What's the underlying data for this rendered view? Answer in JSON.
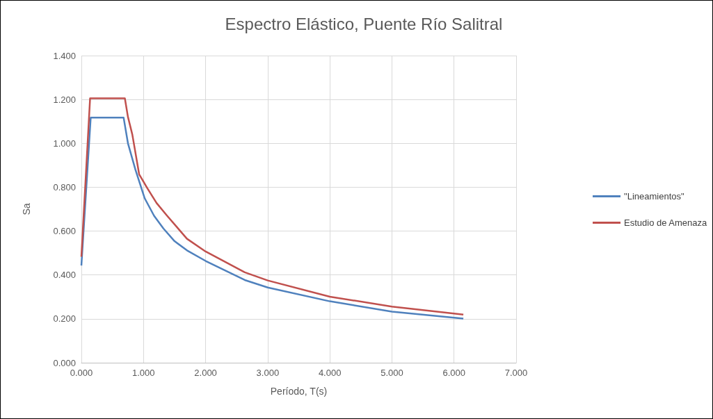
{
  "chart_data": {
    "type": "line",
    "title": "Espectro Elástico, Puente Río Salitral",
    "xlabel": "Período, T(s)",
    "ylabel": "Sa",
    "xlim": [
      0,
      7
    ],
    "xticks": [
      {
        "value": 0,
        "label": "0.000"
      },
      {
        "value": 1,
        "label": "1.000"
      },
      {
        "value": 2,
        "label": "2.000"
      },
      {
        "value": 3,
        "label": "3.000"
      },
      {
        "value": 4,
        "label": "4.000"
      },
      {
        "value": 5,
        "label": "5.000"
      },
      {
        "value": 6,
        "label": "6.000"
      },
      {
        "value": 7,
        "label": "7.000"
      }
    ],
    "ylim": [
      0,
      1.4
    ],
    "yticks": [
      {
        "value": 0,
        "label": "0.000"
      },
      {
        "value": 0.2,
        "label": "0.200"
      },
      {
        "value": 0.4,
        "label": "0.400"
      },
      {
        "value": 0.6,
        "label": "0.600"
      },
      {
        "value": 0.8,
        "label": "0.800"
      },
      {
        "value": 1,
        "label": "1.000"
      },
      {
        "value": 1.2,
        "label": "1.200"
      },
      {
        "value": 1.4,
        "label": "1.400"
      }
    ],
    "grid": true,
    "legend": "right",
    "marker": "none",
    "line_style": "solid",
    "series": [
      {
        "name": "\"Lineamientos\"",
        "color": "#4f81bd",
        "x": [
          0,
          0.15,
          0.68,
          0.75,
          0.87,
          1.02,
          1.17,
          1.32,
          1.5,
          1.7,
          2.0,
          2.63,
          3.0,
          4.0,
          5.0,
          6.15
        ],
        "values": [
          0.443,
          1.117,
          1.117,
          1.0,
          0.88,
          0.749,
          0.67,
          0.612,
          0.554,
          0.512,
          0.464,
          0.377,
          0.343,
          0.28,
          0.233,
          0.201
        ]
      },
      {
        "name": "Estudio de Amenaza",
        "color": "#c0504d",
        "x": [
          0,
          0.14,
          0.7,
          0.75,
          0.82,
          0.93,
          1.06,
          1.21,
          1.38,
          1.7,
          2.0,
          2.63,
          3.0,
          4.0,
          5.0,
          6.15
        ],
        "values": [
          0.483,
          1.205,
          1.205,
          1.12,
          1.04,
          0.859,
          0.796,
          0.728,
          0.67,
          0.565,
          0.507,
          0.412,
          0.375,
          0.301,
          0.256,
          0.219
        ]
      }
    ]
  }
}
